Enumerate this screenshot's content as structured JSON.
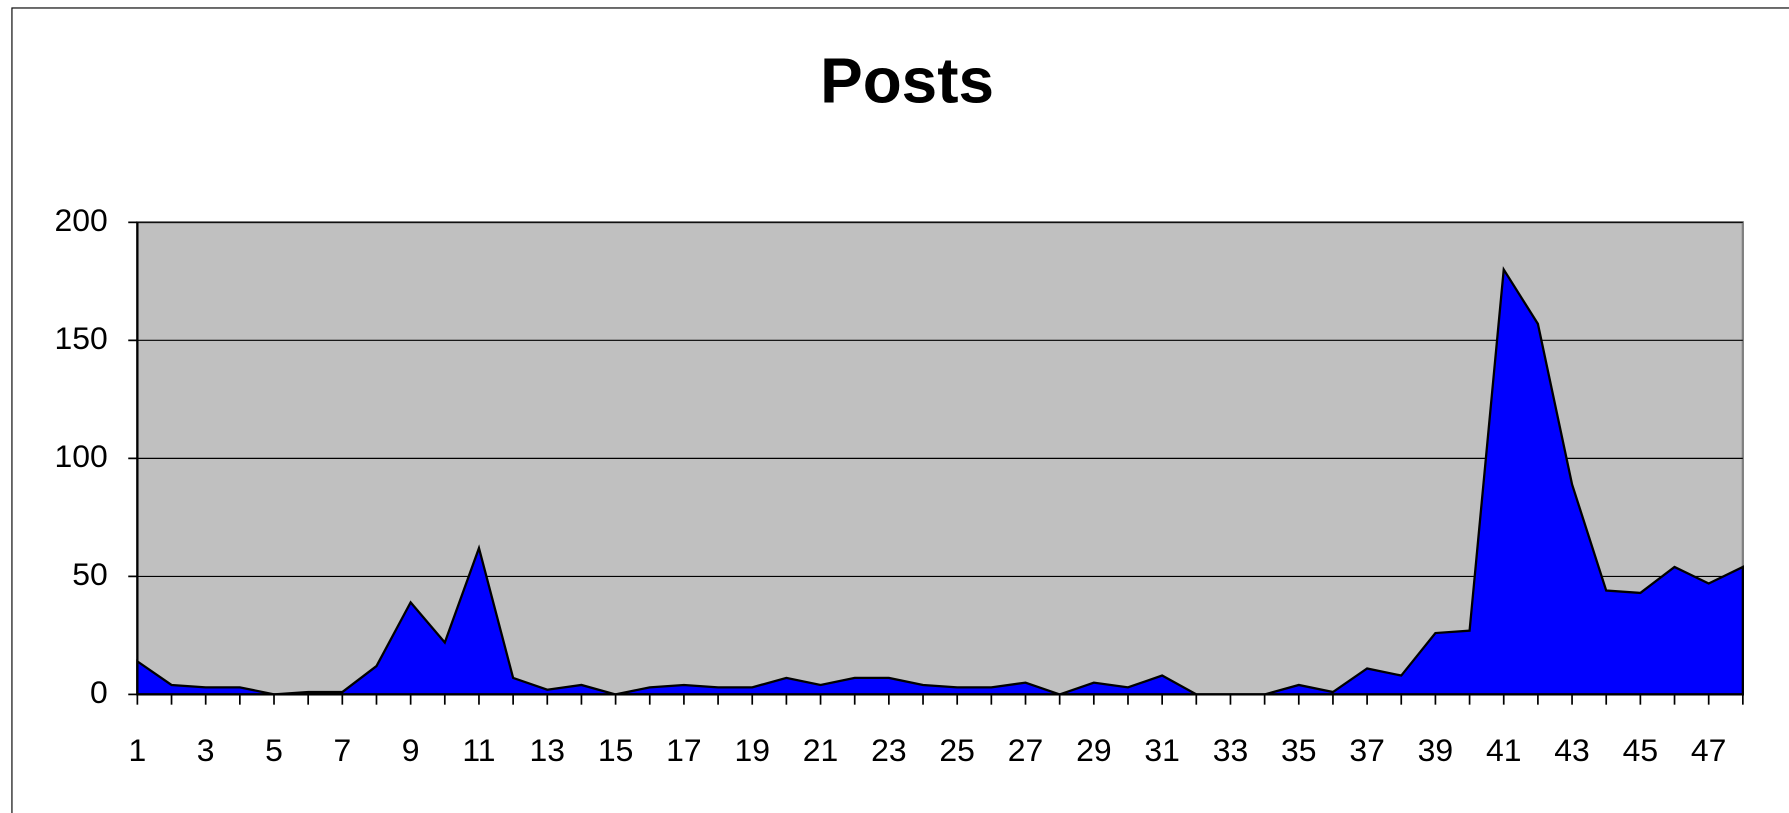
{
  "chart_data": {
    "type": "area",
    "title": "Posts",
    "categories": [
      "1",
      null,
      "3",
      null,
      "5",
      null,
      "7",
      null,
      "9",
      null,
      "11",
      null,
      "13",
      null,
      "15",
      null,
      "17",
      null,
      "19",
      null,
      "21",
      null,
      "23",
      null,
      "25",
      null,
      "27",
      null,
      "29",
      null,
      "31",
      null,
      "33",
      null,
      "35",
      null,
      "37",
      null,
      "39",
      null,
      "41",
      null,
      "43",
      null,
      "45",
      null,
      "47",
      null
    ],
    "series": [
      {
        "name": "Posts",
        "color": "#0000ff",
        "values": [
          14,
          4,
          3,
          3,
          0,
          1,
          1,
          12,
          39,
          22,
          62,
          7,
          2,
          4,
          0,
          3,
          4,
          3,
          3,
          7,
          4,
          7,
          7,
          4,
          3,
          3,
          5,
          0,
          5,
          3,
          8,
          0,
          0,
          0,
          4,
          1,
          11,
          8,
          26,
          27,
          180,
          157,
          89,
          44,
          43,
          54,
          47,
          54
        ]
      }
    ],
    "ylim": [
      0,
      200
    ],
    "yticks": [
      0,
      50,
      100,
      150,
      200
    ],
    "grid": true
  }
}
